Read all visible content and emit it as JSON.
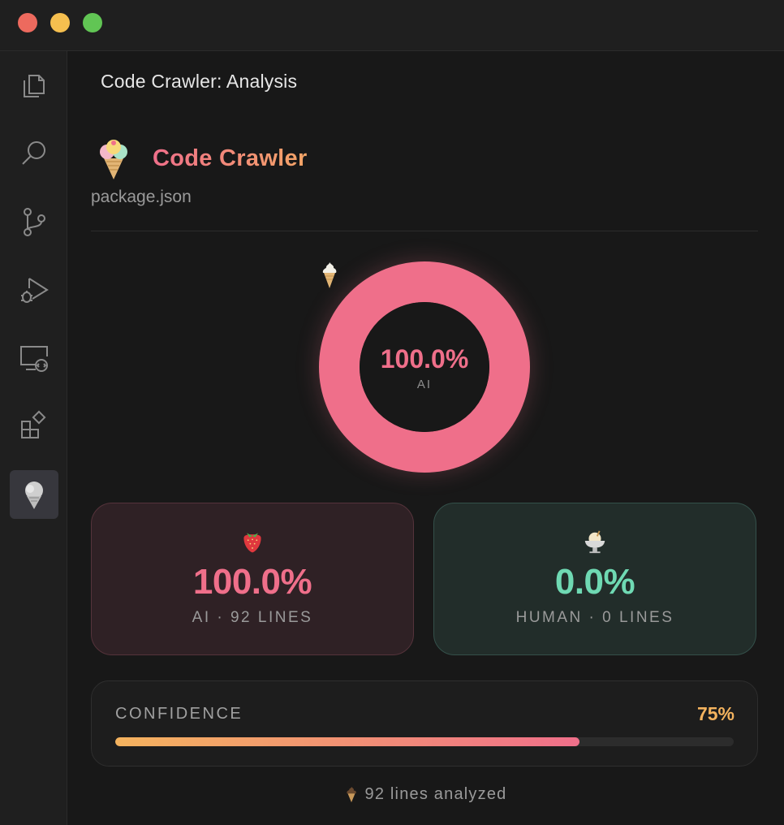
{
  "window": {
    "controls": [
      "close",
      "minimize",
      "zoom"
    ]
  },
  "activity_bar": {
    "items": [
      {
        "icon": "files-icon"
      },
      {
        "icon": "search-icon"
      },
      {
        "icon": "source-control-icon"
      },
      {
        "icon": "run-debug-icon"
      },
      {
        "icon": "remote-explorer-icon"
      },
      {
        "icon": "extensions-icon"
      },
      {
        "icon": "ice-cream-icon",
        "active": true
      }
    ]
  },
  "panel": {
    "title": "Code Crawler: Analysis",
    "app_name": "Code Crawler",
    "file": "package.json"
  },
  "donut": {
    "ai_fraction": 1.0,
    "value_text": "100.0%",
    "label": "AI",
    "color": "#ef6f8a"
  },
  "cards": {
    "ai": {
      "icon": "strawberry-icon",
      "value": "100.0%",
      "subtitle": "AI · 92 LINES"
    },
    "human": {
      "icon": "ice-cream-bowl-icon",
      "value": "0.0%",
      "subtitle": "HUMAN · 0 LINES"
    }
  },
  "confidence": {
    "label": "CONFIDENCE",
    "value_text": "75%",
    "fraction": 0.75
  },
  "footer": {
    "text": "92 lines analyzed"
  },
  "colors": {
    "ai_accent": "#ef6f8a",
    "human_accent": "#6fd9b3",
    "confidence_accent": "#f4b35e"
  }
}
